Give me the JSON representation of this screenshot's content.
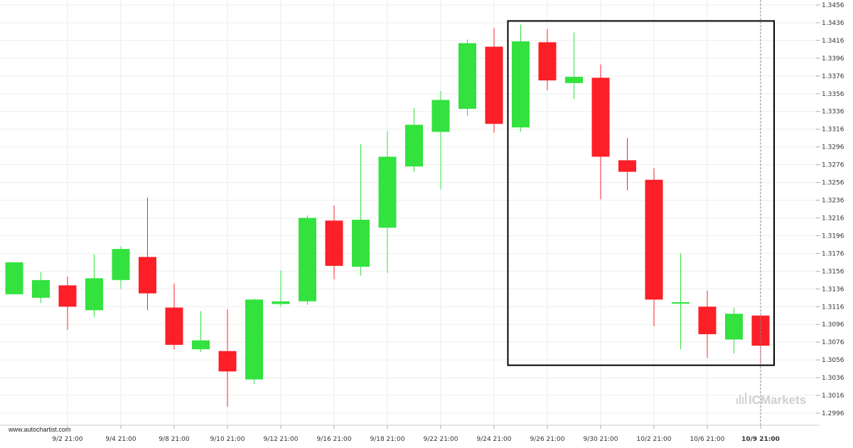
{
  "chart_data": {
    "type": "candlestick",
    "title": "",
    "xlabel": "",
    "ylabel": "",
    "ylim": [
      1.2986,
      1.3466
    ],
    "grid": true,
    "y_ticks": [
      "1.3456",
      "1.3436",
      "1.3416",
      "1.3396",
      "1.3376",
      "1.3356",
      "1.3336",
      "1.3316",
      "1.3296",
      "1.3276",
      "1.3256",
      "1.3236",
      "1.3216",
      "1.3196",
      "1.3176",
      "1.3156",
      "1.3136",
      "1.3116",
      "1.3096",
      "1.3076",
      "1.3056",
      "1.3036",
      "1.3016",
      "1.2996"
    ],
    "x_ticks": [
      {
        "label": "9/2 21:00",
        "index": 2
      },
      {
        "label": "9/4 21:00",
        "index": 4
      },
      {
        "label": "9/8 21:00",
        "index": 6
      },
      {
        "label": "9/10 21:00",
        "index": 8
      },
      {
        "label": "9/12 21:00",
        "index": 10
      },
      {
        "label": "9/16 21:00",
        "index": 12
      },
      {
        "label": "9/18 21:00",
        "index": 14
      },
      {
        "label": "9/22 21:00",
        "index": 16
      },
      {
        "label": "9/24 21:00",
        "index": 18
      },
      {
        "label": "9/26 21:00",
        "index": 20
      },
      {
        "label": "9/30 21:00",
        "index": 22
      },
      {
        "label": "10/2 21:00",
        "index": 24
      },
      {
        "label": "10/6 21:00",
        "index": 26
      },
      {
        "label": "10/9 21:00",
        "index": 28,
        "bold": true
      }
    ],
    "candles": [
      {
        "o": 1.313,
        "h": 1.3166,
        "l": 1.313,
        "c": 1.3166
      },
      {
        "o": 1.3126,
        "h": 1.3155,
        "l": 1.312,
        "c": 1.3146
      },
      {
        "o": 1.314,
        "h": 1.315,
        "l": 1.309,
        "c": 1.3116
      },
      {
        "o": 1.3112,
        "h": 1.3175,
        "l": 1.3104,
        "c": 1.3148
      },
      {
        "o": 1.3146,
        "h": 1.3184,
        "l": 1.3136,
        "c": 1.3181
      },
      {
        "o": 1.3172,
        "h": 1.3239,
        "l": 1.3112,
        "c": 1.3131
      },
      {
        "o": 1.3115,
        "h": 1.3142,
        "l": 1.3068,
        "c": 1.3073
      },
      {
        "o": 1.3068,
        "h": 1.3111,
        "l": 1.3065,
        "c": 1.3078
      },
      {
        "o": 1.3066,
        "h": 1.3113,
        "l": 1.3003,
        "c": 1.3043
      },
      {
        "o": 1.3034,
        "h": 1.3125,
        "l": 1.3029,
        "c": 1.3124
      },
      {
        "o": 1.3119,
        "h": 1.3157,
        "l": 1.3116,
        "c": 1.3122
      },
      {
        "o": 1.3122,
        "h": 1.3219,
        "l": 1.3118,
        "c": 1.3216
      },
      {
        "o": 1.3213,
        "h": 1.323,
        "l": 1.3147,
        "c": 1.3162
      },
      {
        "o": 1.3161,
        "h": 1.3299,
        "l": 1.3151,
        "c": 1.3214
      },
      {
        "o": 1.3205,
        "h": 1.3314,
        "l": 1.3154,
        "c": 1.3285
      },
      {
        "o": 1.3274,
        "h": 1.334,
        "l": 1.3268,
        "c": 1.3321
      },
      {
        "o": 1.3313,
        "h": 1.3359,
        "l": 1.3248,
        "c": 1.3349
      },
      {
        "o": 1.3339,
        "h": 1.3417,
        "l": 1.3331,
        "c": 1.3413
      },
      {
        "o": 1.3409,
        "h": 1.343,
        "l": 1.3312,
        "c": 1.3322
      },
      {
        "o": 1.3318,
        "h": 1.3434,
        "l": 1.3313,
        "c": 1.3415
      },
      {
        "o": 1.3414,
        "h": 1.3429,
        "l": 1.336,
        "c": 1.3371
      },
      {
        "o": 1.3368,
        "h": 1.3425,
        "l": 1.335,
        "c": 1.3375
      },
      {
        "o": 1.3374,
        "h": 1.3389,
        "l": 1.3237,
        "c": 1.3285
      },
      {
        "o": 1.3281,
        "h": 1.3306,
        "l": 1.3247,
        "c": 1.3268
      },
      {
        "o": 1.3259,
        "h": 1.3272,
        "l": 1.3094,
        "c": 1.3124
      },
      {
        "o": 1.312,
        "h": 1.3176,
        "l": 1.3068,
        "c": 1.3121
      },
      {
        "o": 1.3116,
        "h": 1.3134,
        "l": 1.3058,
        "c": 1.3085
      },
      {
        "o": 1.3079,
        "h": 1.3115,
        "l": 1.3063,
        "c": 1.3108
      },
      {
        "o": 1.3106,
        "h": 1.3106,
        "l": 1.3053,
        "c": 1.3072
      }
    ],
    "pattern_box": {
      "from_index": 19,
      "to_index": 28,
      "y_top": 1.3438,
      "y_bottom": 1.305
    },
    "current_marker_index": 28,
    "colors": {
      "up": "#33e23f",
      "down": "#fc1f27",
      "grid": "#eeeeee",
      "box": "#000000",
      "marker": "#888888"
    }
  },
  "watermark": {
    "brand": "ICMarkets"
  },
  "source_label": "www.autochartist.com"
}
